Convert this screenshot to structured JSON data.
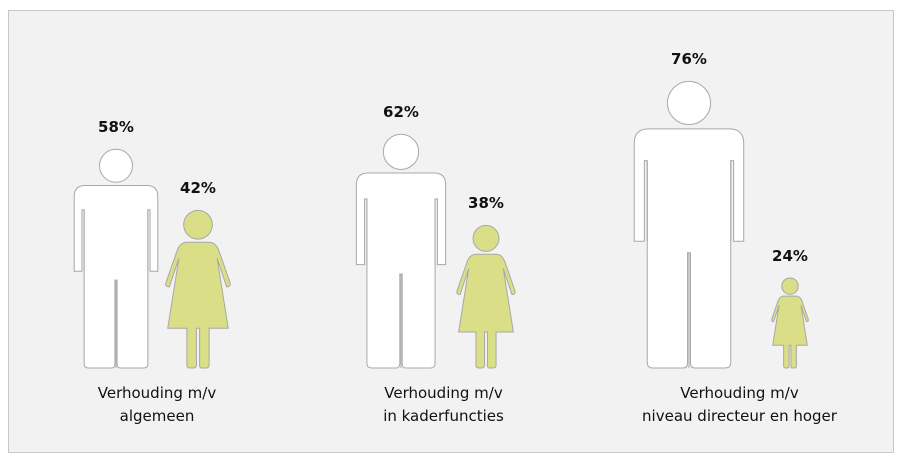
{
  "chart_data": {
    "type": "pictogram",
    "categories": [
      [
        "Verhouding m/v",
        "algemeen"
      ],
      [
        "Verhouding m/v",
        "in kaderfuncties"
      ],
      [
        "Verhouding m/v",
        "niveau directeur en hoger"
      ]
    ],
    "series": [
      {
        "figure": "man",
        "color": "#ffffff",
        "values": [
          58,
          62,
          76
        ],
        "value_labels": [
          "58%",
          "62%",
          "76%"
        ]
      },
      {
        "figure": "woman",
        "color": "#d9de87",
        "values": [
          42,
          38,
          24
        ],
        "value_labels": [
          "42%",
          "38%",
          "24%"
        ]
      }
    ]
  }
}
